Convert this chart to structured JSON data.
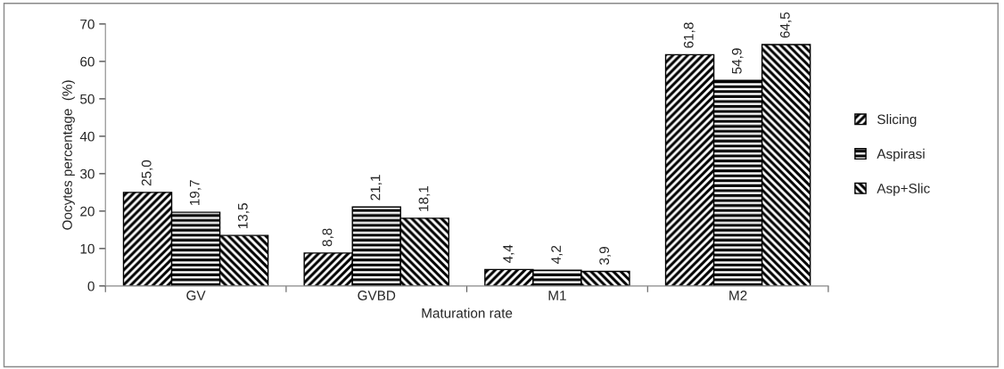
{
  "chart_data": {
    "type": "bar",
    "xlabel": "Maturation rate",
    "ylabel": "Oocytes percentage  (%)",
    "categories": [
      "GV",
      "GVBD",
      "M1",
      "M2"
    ],
    "series": [
      {
        "name": "Slicing",
        "color": "#000000",
        "values": [
          25.0,
          8.8,
          4.4,
          61.8
        ],
        "value_labels": [
          "25,0",
          "8,8",
          "4,4",
          "61,8"
        ]
      },
      {
        "name": "Aspirasi",
        "color": "#000000",
        "values": [
          19.7,
          21.1,
          4.2,
          54.9
        ],
        "value_labels": [
          "19,7",
          "21,1",
          "4,2",
          "54,9"
        ]
      },
      {
        "name": "Asp+Slic",
        "color": "#000000",
        "values": [
          13.5,
          18.1,
          3.9,
          64.5
        ],
        "value_labels": [
          "13,5",
          "18,1",
          "3,9",
          "64,5"
        ]
      }
    ],
    "ylim": [
      0,
      70
    ],
    "yticks": [
      0,
      10,
      20,
      30,
      40,
      50,
      60,
      70
    ],
    "grid": false,
    "legend": "right"
  }
}
